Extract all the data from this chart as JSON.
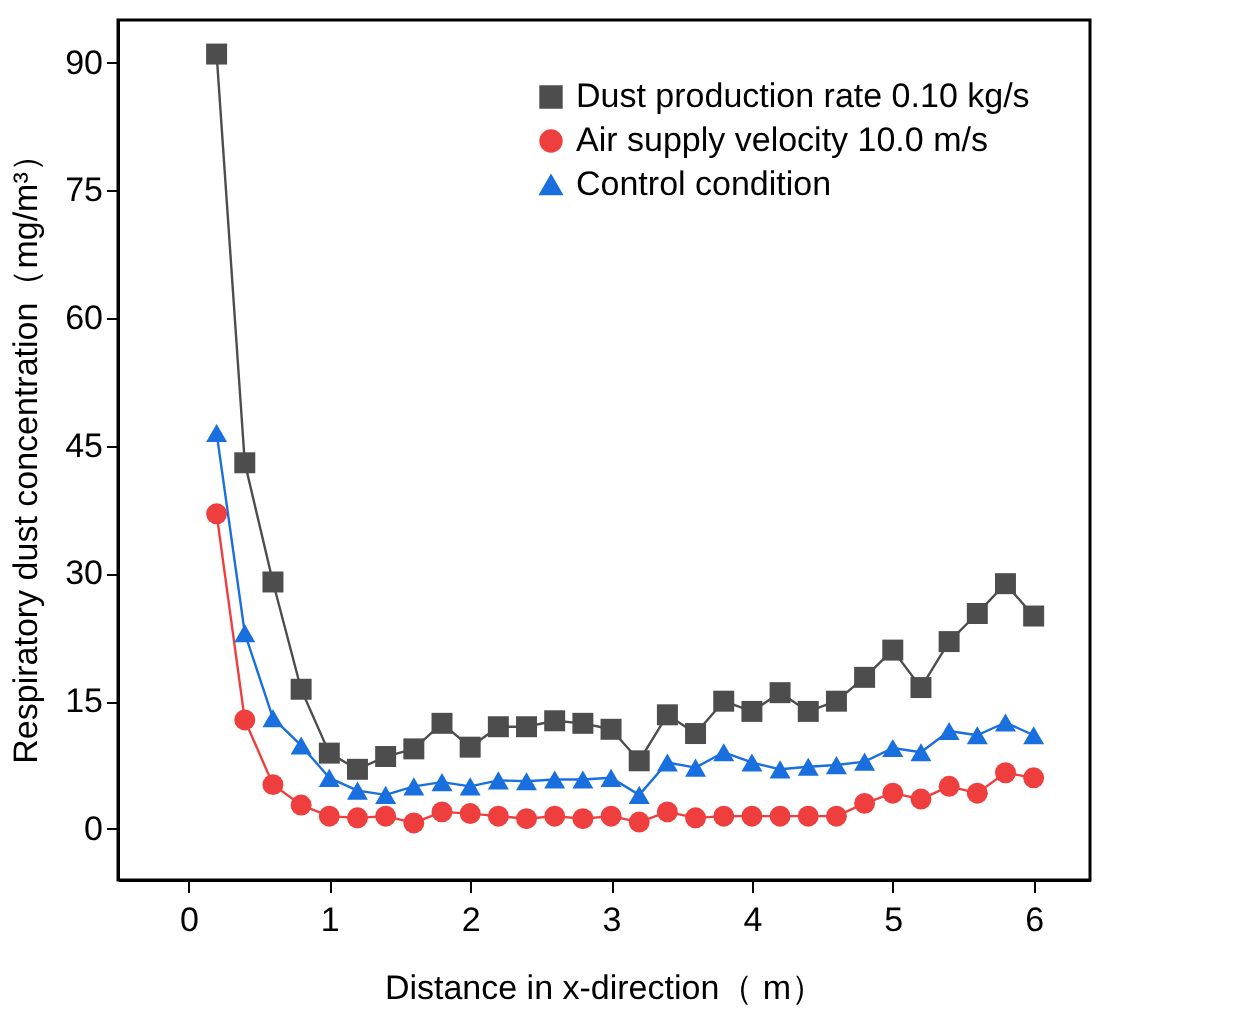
{
  "chart_data": {
    "type": "line",
    "xlabel": "Distance in x-direction（ m）",
    "ylabel": "Respiratory  dust concentration（mg/m³）",
    "x": [
      0.2,
      0.4,
      0.6,
      0.8,
      1.0,
      1.2,
      1.4,
      1.6,
      1.8,
      2.0,
      2.2,
      2.4,
      2.6,
      2.8,
      3.0,
      3.2,
      3.4,
      3.6,
      3.8,
      4.0,
      4.2,
      4.4,
      4.6,
      4.8,
      5.0,
      5.2,
      5.4,
      5.6,
      5.8,
      6.0
    ],
    "series": [
      {
        "name": "Dust production rate 0.10 kg/s",
        "color": "#4d4d4d",
        "marker": "square",
        "values": [
          91,
          43,
          29,
          16.4,
          8.9,
          7,
          8.5,
          9.4,
          12.4,
          9.6,
          12,
          12,
          12.7,
          12.4,
          11.7,
          8,
          13.4,
          11.2,
          15,
          13.8,
          16,
          13.8,
          15,
          17.8,
          21,
          16.6,
          22,
          25.3,
          28.8,
          25
        ]
      },
      {
        "name": "Air supply velocity 10.0 m/s",
        "color": "#ef3e3e",
        "marker": "circle",
        "values": [
          37,
          12.8,
          5.2,
          2.8,
          1.5,
          1.3,
          1.5,
          0.7,
          2,
          1.8,
          1.5,
          1.2,
          1.5,
          1.2,
          1.5,
          0.8,
          2,
          1.3,
          1.5,
          1.5,
          1.5,
          1.5,
          1.5,
          3,
          4.2,
          3.5,
          5,
          4.2,
          6.6,
          6
        ]
      },
      {
        "name": "Control condition",
        "color": "#1a6fdf",
        "marker": "triangle",
        "values": [
          46.5,
          23,
          13,
          9.8,
          6,
          4.5,
          4,
          5,
          5.5,
          5,
          5.7,
          5.6,
          5.8,
          5.8,
          6,
          4,
          7.8,
          7.2,
          9,
          7.8,
          7,
          7.3,
          7.5,
          7.9,
          9.5,
          9,
          11.5,
          11,
          12.5,
          11
        ]
      }
    ],
    "xlim": [
      -0.5,
      6.4
    ],
    "ylim": [
      -6,
      95
    ],
    "xticks": [
      0,
      1,
      2,
      3,
      4,
      5,
      6
    ],
    "yticks": [
      0,
      15,
      30,
      45,
      60,
      75,
      90
    ],
    "grid": false,
    "legend": "top right",
    "line_style": "solid"
  }
}
